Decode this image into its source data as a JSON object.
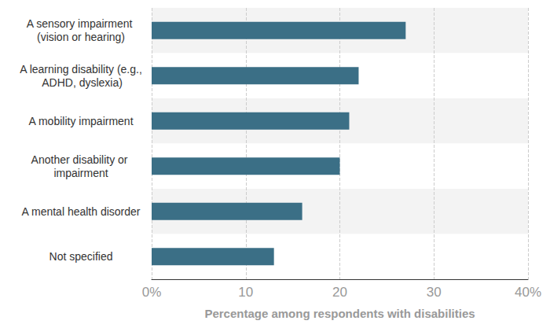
{
  "chart_data": {
    "type": "bar",
    "orientation": "horizontal",
    "categories": [
      "A sensory impairment (vision or hearing)",
      "A learning disability (e.g., ADHD, dyslexia)",
      "A mobility impairment",
      "Another disability or impairment",
      "A mental health disorder",
      "Not specified"
    ],
    "values": [
      27,
      22,
      21,
      20,
      16,
      13
    ],
    "color": "#3b6f86",
    "xlabel": "Percentage among respondents with disabilities",
    "xlim": [
      0,
      40
    ],
    "xticks": [
      {
        "value": 0,
        "label": "0%"
      },
      10,
      20,
      30,
      {
        "value": 40,
        "label": "40%"
      }
    ],
    "grid": true
  }
}
